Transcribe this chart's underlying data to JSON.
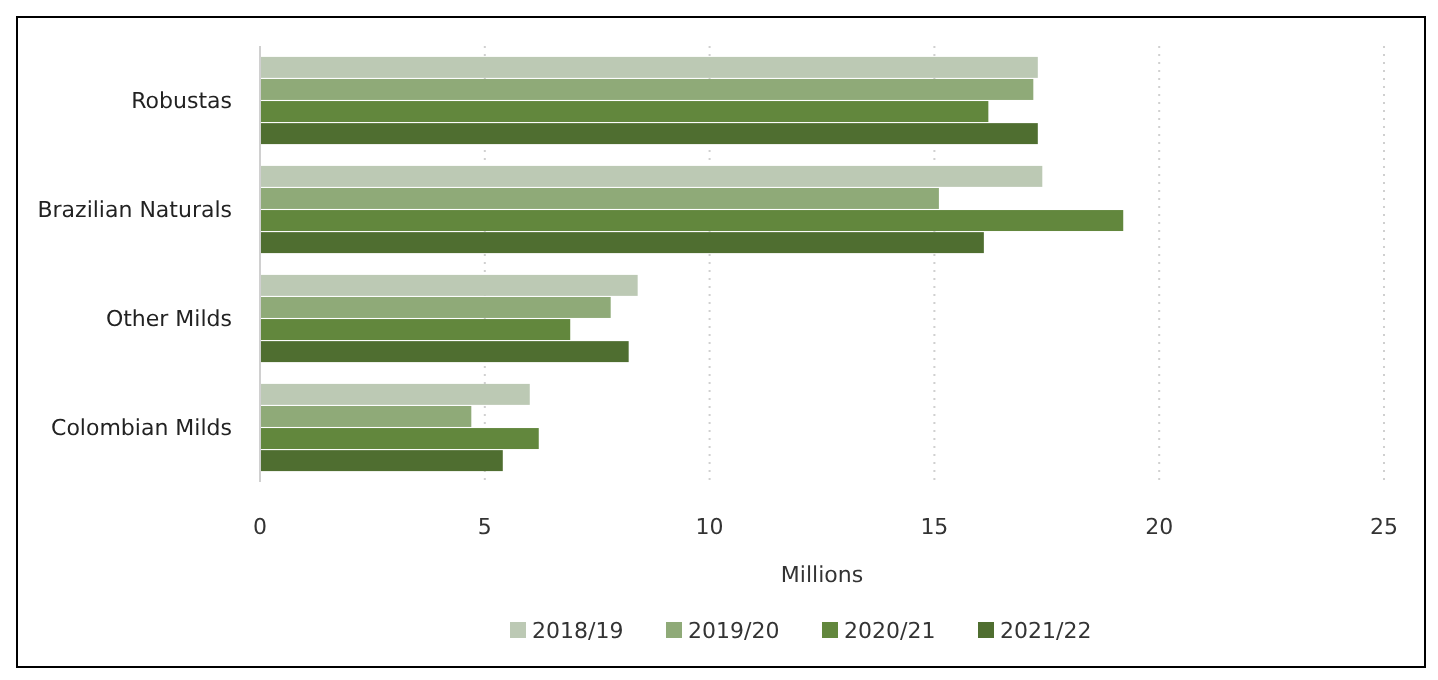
{
  "chart_data": {
    "type": "bar",
    "orientation": "horizontal",
    "categories": [
      "Robustas",
      "Brazilian Naturals",
      "Other Milds",
      "Colombian Milds"
    ],
    "series": [
      {
        "name": "2018/19",
        "color": "#bcc9b4",
        "values": [
          17.3,
          17.4,
          8.4,
          6.0
        ]
      },
      {
        "name": "2019/20",
        "color": "#8faa78",
        "values": [
          17.2,
          15.1,
          7.8,
          4.7
        ]
      },
      {
        "name": "2020/21",
        "color": "#62873d",
        "values": [
          16.2,
          19.2,
          6.9,
          6.2
        ]
      },
      {
        "name": "2021/22",
        "color": "#4f6e30",
        "values": [
          17.3,
          16.1,
          8.2,
          5.4
        ]
      }
    ],
    "xlim": [
      0,
      25
    ],
    "xticks": [
      0,
      5,
      10,
      15,
      20,
      25
    ],
    "xlabel": "Millions",
    "grid": "x",
    "legend": "bottom"
  }
}
